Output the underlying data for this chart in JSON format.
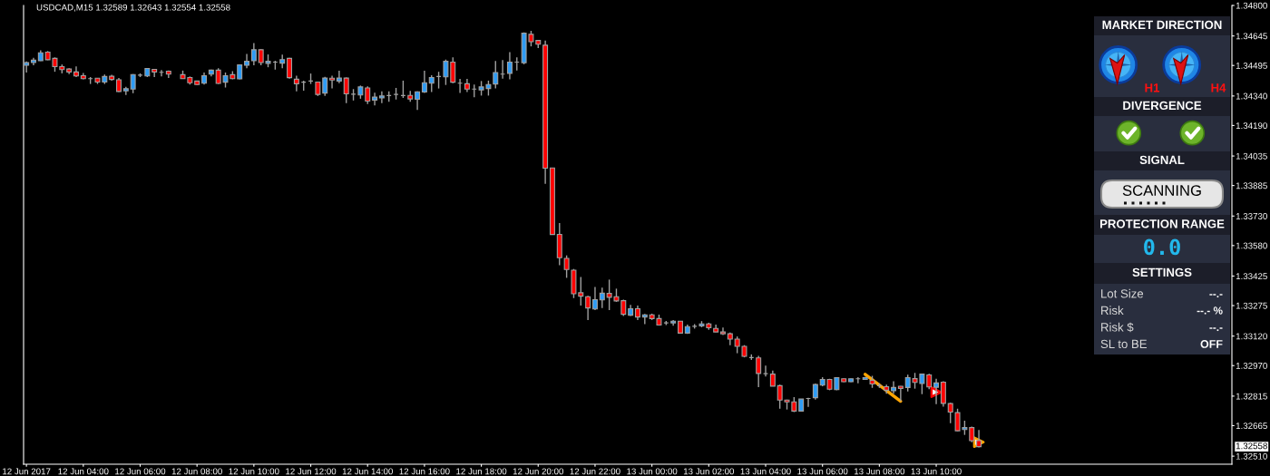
{
  "chart_data": [
    {
      "type": "candlestick",
      "title": "USDCAD,M15 1.32589 1.32643 1.32554 1.32558",
      "x": [
        "2017-06-12T02:00",
        "2017-06-12T02:15",
        "2017-06-12T02:30",
        "2017-06-12T02:45",
        "2017-06-12T03:00",
        "2017-06-12T03:15",
        "2017-06-12T03:30",
        "2017-06-12T03:45",
        "2017-06-12T04:00",
        "2017-06-12T04:15",
        "2017-06-12T04:30",
        "2017-06-12T04:45",
        "2017-06-12T05:00",
        "2017-06-12T05:15",
        "2017-06-12T05:30",
        "2017-06-12T05:45",
        "2017-06-12T06:00",
        "2017-06-12T06:15",
        "2017-06-12T06:30",
        "2017-06-12T06:45",
        "2017-06-12T07:00",
        "2017-06-12T07:30",
        "2017-06-12T07:45",
        "2017-06-12T08:00",
        "2017-06-12T08:15",
        "2017-06-12T08:30",
        "2017-06-12T08:45",
        "2017-06-12T09:00",
        "2017-06-12T09:15",
        "2017-06-12T09:30",
        "2017-06-12T09:45",
        "2017-06-12T10:00",
        "2017-06-12T10:15",
        "2017-06-12T10:30",
        "2017-06-12T10:45",
        "2017-06-12T11:00",
        "2017-06-12T11:15",
        "2017-06-12T11:30",
        "2017-06-12T11:45",
        "2017-06-12T12:00",
        "2017-06-12T12:15",
        "2017-06-12T12:30",
        "2017-06-12T12:45",
        "2017-06-12T13:00",
        "2017-06-12T13:15",
        "2017-06-12T13:30",
        "2017-06-12T13:45",
        "2017-06-12T14:00",
        "2017-06-12T14:15",
        "2017-06-12T14:30",
        "2017-06-12T14:45",
        "2017-06-12T15:00",
        "2017-06-12T15:15",
        "2017-06-12T15:30",
        "2017-06-12T15:45",
        "2017-06-12T16:00",
        "2017-06-12T16:15",
        "2017-06-12T16:30",
        "2017-06-12T16:45",
        "2017-06-12T17:00",
        "2017-06-12T17:15",
        "2017-06-12T17:30",
        "2017-06-12T17:45",
        "2017-06-12T18:00",
        "2017-06-12T18:15",
        "2017-06-12T18:30",
        "2017-06-12T18:45",
        "2017-06-12T19:00",
        "2017-06-12T19:15",
        "2017-06-12T19:30",
        "2017-06-12T19:45",
        "2017-06-12T20:00",
        "2017-06-12T20:15",
        "2017-06-12T20:30",
        "2017-06-12T20:45",
        "2017-06-12T21:00",
        "2017-06-12T21:15",
        "2017-06-12T21:30",
        "2017-06-12T21:45",
        "2017-06-12T22:00",
        "2017-06-12T22:15",
        "2017-06-12T22:30",
        "2017-06-12T22:45",
        "2017-06-12T23:00",
        "2017-06-12T23:15",
        "2017-06-12T23:30",
        "2017-06-12T23:45",
        "2017-06-13T00:00",
        "2017-06-13T00:15",
        "2017-06-13T00:30",
        "2017-06-13T00:45",
        "2017-06-13T01:00",
        "2017-06-13T01:15",
        "2017-06-13T01:30",
        "2017-06-13T01:45",
        "2017-06-13T02:00",
        "2017-06-13T02:15",
        "2017-06-13T02:30",
        "2017-06-13T02:45",
        "2017-06-13T03:00",
        "2017-06-13T03:15",
        "2017-06-13T03:30",
        "2017-06-13T03:45",
        "2017-06-13T04:00",
        "2017-06-13T04:15",
        "2017-06-13T04:30",
        "2017-06-13T04:45",
        "2017-06-13T05:00",
        "2017-06-13T05:15",
        "2017-06-13T05:30",
        "2017-06-13T05:45",
        "2017-06-13T06:00",
        "2017-06-13T06:15",
        "2017-06-13T06:30",
        "2017-06-13T06:45",
        "2017-06-13T07:00",
        "2017-06-13T07:15",
        "2017-06-13T07:30",
        "2017-06-13T07:45",
        "2017-06-13T08:00",
        "2017-06-13T08:15",
        "2017-06-13T08:30",
        "2017-06-13T08:45",
        "2017-06-13T09:00",
        "2017-06-13T09:15",
        "2017-06-13T09:30",
        "2017-06-13T09:45",
        "2017-06-13T10:00",
        "2017-06-13T10:15",
        "2017-06-13T10:30",
        "2017-06-13T10:45",
        "2017-06-13T11:00",
        "2017-06-13T11:15",
        "2017-06-13T11:30"
      ],
      "ohlc": [
        [
          1.34496,
          1.34515,
          1.34459,
          1.34509
        ],
        [
          1.3451,
          1.34534,
          1.34496,
          1.34522
        ],
        [
          1.34519,
          1.34572,
          1.34518,
          1.34559
        ],
        [
          1.34563,
          1.34568,
          1.34522,
          1.34524
        ],
        [
          1.34531,
          1.34536,
          1.34463,
          1.34489
        ],
        [
          1.34489,
          1.345,
          1.34455,
          1.34474
        ],
        [
          1.34477,
          1.34481,
          1.34451,
          1.34462
        ],
        [
          1.34462,
          1.3449,
          1.34436,
          1.34442
        ],
        [
          1.34443,
          1.34457,
          1.34424,
          1.34428
        ],
        [
          1.34428,
          1.34436,
          1.34401,
          1.34428
        ],
        [
          1.3443,
          1.34431,
          1.34401,
          1.34411
        ],
        [
          1.34411,
          1.34449,
          1.34401,
          1.34439
        ],
        [
          1.3444,
          1.34448,
          1.34418,
          1.34424
        ],
        [
          1.34422,
          1.34431,
          1.3436,
          1.34363
        ],
        [
          1.34366,
          1.34386,
          1.34345,
          1.34377
        ],
        [
          1.34375,
          1.34451,
          1.34354,
          1.34449
        ],
        [
          1.34446,
          1.34455,
          1.34436,
          1.34446
        ],
        [
          1.34442,
          1.34481,
          1.34436,
          1.3448
        ],
        [
          1.34475,
          1.34478,
          1.34436,
          1.34462
        ],
        [
          1.3446,
          1.34472,
          1.3444,
          1.3446
        ],
        [
          1.34466,
          1.34469,
          1.34431,
          1.34451
        ],
        [
          1.34448,
          1.34469,
          1.34427,
          1.34428
        ],
        [
          1.34434,
          1.34439,
          1.34398,
          1.34407
        ],
        [
          1.34416,
          1.34418,
          1.34396,
          1.34398
        ],
        [
          1.34405,
          1.34459,
          1.34398,
          1.34443
        ],
        [
          1.34451,
          1.34474,
          1.3444,
          1.34471
        ],
        [
          1.34471,
          1.34481,
          1.34401,
          1.34404
        ],
        [
          1.3441,
          1.34459,
          1.34383,
          1.34443
        ],
        [
          1.34448,
          1.34466,
          1.34425,
          1.34428
        ],
        [
          1.34427,
          1.345,
          1.34424,
          1.34498
        ],
        [
          1.34496,
          1.34554,
          1.34481,
          1.34516
        ],
        [
          1.34519,
          1.34609,
          1.34496,
          1.34575
        ],
        [
          1.34575,
          1.34578,
          1.34496,
          1.3451
        ],
        [
          1.34506,
          1.34551,
          1.34486,
          1.34516
        ],
        [
          1.34512,
          1.34519,
          1.34474,
          1.34512
        ],
        [
          1.34507,
          1.3455,
          1.34481,
          1.34525
        ],
        [
          1.34531,
          1.34534,
          1.34428,
          1.34433
        ],
        [
          1.34425,
          1.34443,
          1.34364,
          1.34402
        ],
        [
          1.3441,
          1.34418,
          1.34367,
          1.3441
        ],
        [
          1.34416,
          1.34454,
          1.34401,
          1.34416
        ],
        [
          1.34411,
          1.34413,
          1.3434,
          1.34348
        ],
        [
          1.34355,
          1.34437,
          1.3434,
          1.34431
        ],
        [
          1.3443,
          1.34443,
          1.34378,
          1.34421
        ],
        [
          1.34416,
          1.34468,
          1.34405,
          1.34431
        ],
        [
          1.34431,
          1.34434,
          1.34304,
          1.34351
        ],
        [
          1.34349,
          1.34375,
          1.34317,
          1.34349
        ],
        [
          1.34345,
          1.34393,
          1.34326,
          1.34386
        ],
        [
          1.34381,
          1.34389,
          1.34299,
          1.34314
        ],
        [
          1.34319,
          1.34357,
          1.34292,
          1.34334
        ],
        [
          1.3433,
          1.34363,
          1.34304,
          1.3434
        ],
        [
          1.34342,
          1.34363,
          1.3431,
          1.34342
        ],
        [
          1.34348,
          1.34381,
          1.34322,
          1.34348
        ],
        [
          1.34342,
          1.34418,
          1.3433,
          1.34342
        ],
        [
          1.34343,
          1.34366,
          1.3431,
          1.34325
        ],
        [
          1.34323,
          1.34363,
          1.34269,
          1.34361
        ],
        [
          1.3436,
          1.34468,
          1.34355,
          1.34407
        ],
        [
          1.34405,
          1.34445,
          1.3436,
          1.34434
        ],
        [
          1.34439,
          1.34463,
          1.34378,
          1.34439
        ],
        [
          1.34437,
          1.34525,
          1.34396,
          1.34516
        ],
        [
          1.34512,
          1.34536,
          1.34405,
          1.3441
        ],
        [
          1.34405,
          1.34427,
          1.34355,
          1.34405
        ],
        [
          1.34402,
          1.34427,
          1.3436,
          1.34375
        ],
        [
          1.34375,
          1.34398,
          1.34333,
          1.34375
        ],
        [
          1.34371,
          1.34416,
          1.34342,
          1.34386
        ],
        [
          1.34378,
          1.34418,
          1.34342,
          1.34398
        ],
        [
          1.34401,
          1.34518,
          1.34378,
          1.34459
        ],
        [
          1.34451,
          1.34522,
          1.34428,
          1.34451
        ],
        [
          1.34455,
          1.34563,
          1.34424,
          1.34512
        ],
        [
          1.34512,
          1.34536,
          1.34469,
          1.34512
        ],
        [
          1.34509,
          1.34663,
          1.34501,
          1.34659
        ],
        [
          1.34653,
          1.34671,
          1.34592,
          1.34616
        ],
        [
          1.34622,
          1.34625,
          1.34583,
          1.34603
        ],
        [
          1.34598,
          1.34622,
          1.33894,
          1.33973
        ],
        [
          1.33974,
          1.33974,
          1.33636,
          1.33636
        ],
        [
          1.33637,
          1.33694,
          1.3348,
          1.33518
        ],
        [
          1.33515,
          1.3353,
          1.33416,
          1.33458
        ],
        [
          1.33455,
          1.33461,
          1.33313,
          1.33335
        ],
        [
          1.3334,
          1.3342,
          1.33275,
          1.33323
        ],
        [
          1.3332,
          1.33325,
          1.33202,
          1.33263
        ],
        [
          1.33258,
          1.3337,
          1.33252,
          1.33305
        ],
        [
          1.33304,
          1.33366,
          1.33263,
          1.33338
        ],
        [
          1.33337,
          1.33407,
          1.33252,
          1.33317
        ],
        [
          1.3332,
          1.33361,
          1.33294,
          1.33299
        ],
        [
          1.333,
          1.33305,
          1.33222,
          1.33231
        ],
        [
          1.33226,
          1.33279,
          1.33222,
          1.33259
        ],
        [
          1.33259,
          1.33275,
          1.33202,
          1.33217
        ],
        [
          1.33217,
          1.33232,
          1.33181,
          1.33228
        ],
        [
          1.33228,
          1.33234,
          1.33202,
          1.33209
        ],
        [
          1.33209,
          1.33229,
          1.33176,
          1.33176
        ],
        [
          1.33187,
          1.33197,
          1.33176,
          1.33187
        ],
        [
          1.33187,
          1.33202,
          1.33173,
          1.33196
        ],
        [
          1.33196,
          1.33197,
          1.33134,
          1.33135
        ],
        [
          1.33135,
          1.33179,
          1.33131,
          1.33168
        ],
        [
          1.3317,
          1.33181,
          1.33158,
          1.3317
        ],
        [
          1.33172,
          1.33196,
          1.33165,
          1.33182
        ],
        [
          1.33182,
          1.33188,
          1.33152,
          1.33162
        ],
        [
          1.33159,
          1.33179,
          1.3314,
          1.33141
        ],
        [
          1.33141,
          1.33164,
          1.33126,
          1.33132
        ],
        [
          1.33132,
          1.33138,
          1.33074,
          1.33105
        ],
        [
          1.33105,
          1.33118,
          1.33033,
          1.33068
        ],
        [
          1.33068,
          1.33074,
          1.33012,
          1.33017
        ],
        [
          1.33011,
          1.33027,
          1.32999,
          1.33011
        ],
        [
          1.33009,
          1.3302,
          1.3286,
          1.3293
        ],
        [
          1.32929,
          1.3297,
          1.32915,
          1.32929
        ],
        [
          1.32927,
          1.32945,
          1.32866,
          1.32866
        ],
        [
          1.32868,
          1.32873,
          1.32751,
          1.32795
        ],
        [
          1.32795,
          1.32797,
          1.32747,
          1.32786
        ],
        [
          1.32786,
          1.3281,
          1.32734,
          1.32739
        ],
        [
          1.32739,
          1.32801,
          1.32739,
          1.328
        ],
        [
          1.32803,
          1.32806,
          1.3276,
          1.32803
        ],
        [
          1.32807,
          1.32879,
          1.32797,
          1.32874
        ],
        [
          1.32871,
          1.32911,
          1.32865,
          1.329
        ],
        [
          1.329,
          1.32903,
          1.32845,
          1.3285
        ],
        [
          1.32848,
          1.32911,
          1.32845,
          1.32909
        ],
        [
          1.32903,
          1.32904,
          1.32886,
          1.32888
        ],
        [
          1.32888,
          1.32904,
          1.32886,
          1.32903
        ],
        [
          1.32903,
          1.32911,
          1.3288,
          1.32903
        ],
        [
          1.329,
          1.32912,
          1.32897,
          1.32909
        ],
        [
          1.32895,
          1.32918,
          1.32857,
          1.32877
        ],
        [
          1.32868,
          1.3288,
          1.32857,
          1.32868
        ],
        [
          1.32863,
          1.32873,
          1.32827,
          1.32845
        ],
        [
          1.32842,
          1.32891,
          1.32827,
          1.32859
        ],
        [
          1.32865,
          1.32866,
          1.32789,
          1.32854
        ],
        [
          1.32859,
          1.32924,
          1.32839,
          1.32909
        ],
        [
          1.32904,
          1.32933,
          1.32853,
          1.32885
        ],
        [
          1.32879,
          1.32929,
          1.32825,
          1.32927
        ],
        [
          1.32923,
          1.32929,
          1.3285,
          1.32862
        ],
        [
          1.3286,
          1.32903,
          1.32774,
          1.32882
        ],
        [
          1.32886,
          1.32891,
          1.32762,
          1.32778
        ],
        [
          1.32777,
          1.32781,
          1.32678,
          1.32734
        ],
        [
          1.32731,
          1.32751,
          1.32637,
          1.32639
        ],
        [
          1.32645,
          1.3269,
          1.32618,
          1.32655
        ],
        [
          1.32655,
          1.3266,
          1.32581,
          1.32589
        ],
        [
          1.32589,
          1.32643,
          1.32554,
          1.32558
        ]
      ],
      "color": "#a0a0a0",
      "colors": [
        "#2e9cf5",
        "#2e9cf5",
        "#2e9cf5",
        "#ff0000",
        "#ff0000",
        "#ff0000",
        "#ff0000",
        "#ff0000",
        "#ff0000",
        "#a0a0a0",
        "#ff0000",
        "#2e9cf5",
        "#ff0000",
        "#ff0000",
        "#2e9cf5",
        "#2e9cf5",
        "#a0a0a0",
        "#2e9cf5",
        "#ff0000",
        "#a0a0a0",
        "#ff0000",
        "#ff0000",
        "#ff0000",
        "#ff0000",
        "#2e9cf5",
        "#2e9cf5",
        "#ff0000",
        "#2e9cf5",
        "#ff0000",
        "#2e9cf5",
        "#2e9cf5",
        "#2e9cf5",
        "#ff0000",
        "#2e9cf5",
        "#a0a0a0",
        "#2e9cf5",
        "#ff0000",
        "#ff0000",
        "#a0a0a0",
        "#a0a0a0",
        "#ff0000",
        "#2e9cf5",
        "#ff0000",
        "#2e9cf5",
        "#ff0000",
        "#a0a0a0",
        "#2e9cf5",
        "#ff0000",
        "#2e9cf5",
        "#2e9cf5",
        "#a0a0a0",
        "#a0a0a0",
        "#a0a0a0",
        "#ff0000",
        "#2e9cf5",
        "#2e9cf5",
        "#2e9cf5",
        "#a0a0a0",
        "#2e9cf5",
        "#ff0000",
        "#a0a0a0",
        "#ff0000",
        "#a0a0a0",
        "#2e9cf5",
        "#2e9cf5",
        "#2e9cf5",
        "#a0a0a0",
        "#2e9cf5",
        "#a0a0a0",
        "#2e9cf5",
        "#ff0000",
        "#ff0000",
        "#ff0000",
        "#ff0000",
        "#ff0000",
        "#ff0000",
        "#ff0000",
        "#ff0000",
        "#ff0000",
        "#2e9cf5",
        "#2e9cf5",
        "#ff0000",
        "#ff0000",
        "#ff0000",
        "#2e9cf5",
        "#ff0000",
        "#2e9cf5",
        "#ff0000",
        "#ff0000",
        "#a0a0a0",
        "#2e9cf5",
        "#ff0000",
        "#2e9cf5",
        "#a0a0a0",
        "#2e9cf5",
        "#ff0000",
        "#ff0000",
        "#ff0000",
        "#ff0000",
        "#ff0000",
        "#ff0000",
        "#a0a0a0",
        "#ff0000",
        "#a0a0a0",
        "#ff0000",
        "#ff0000",
        "#ff0000",
        "#ff0000",
        "#2e9cf5",
        "#a0a0a0",
        "#2e9cf5",
        "#2e9cf5",
        "#ff0000",
        "#2e9cf5",
        "#ff0000",
        "#2e9cf5",
        "#a0a0a0",
        "#2e9cf5",
        "#ff0000",
        "#a0a0a0",
        "#ff0000",
        "#2e9cf5",
        "#ff0000",
        "#2e9cf5",
        "#ff0000",
        "#2e9cf5",
        "#ff0000",
        "#2e9cf5",
        "#ff0000",
        "#ff0000",
        "#ff0000",
        "#2e9cf5",
        "#ff0000",
        "#ff0000"
      ],
      "series": [
        {
          "type": "line",
          "x": [
            "2017-06-13T07:30",
            "2017-06-13T08:45"
          ],
          "values": [
            1.32926,
            1.32789
          ],
          "color": "#ffa500",
          "line_style": "solid"
        },
        {
          "type": "scatter",
          "x": [
            "2017-06-13T10:00"
          ],
          "values": [
            1.32835
          ],
          "color": "#ff0000",
          "marker": "triangle"
        },
        {
          "type": "scatter",
          "x": [
            "2017-06-13T11:30"
          ],
          "values": [
            1.32581
          ],
          "color": "#ffa500",
          "marker": "triangle"
        }
      ],
      "xlim": [
        "2017-06-12T01:54",
        "2017-06-13T20:24"
      ],
      "xticks": [
        {
          "value": "2017-06-12T02:00",
          "label": "12 Jun 2017"
        },
        {
          "value": "2017-06-12T04:00",
          "label": "12 Jun 04:00"
        },
        {
          "value": "2017-06-12T06:00",
          "label": "12 Jun 06:00"
        },
        {
          "value": "2017-06-12T08:00",
          "label": "12 Jun 08:00"
        },
        {
          "value": "2017-06-12T10:00",
          "label": "12 Jun 10:00"
        },
        {
          "value": "2017-06-12T12:00",
          "label": "12 Jun 12:00"
        },
        {
          "value": "2017-06-12T14:00",
          "label": "12 Jun 14:00"
        },
        {
          "value": "2017-06-12T16:00",
          "label": "12 Jun 16:00"
        },
        {
          "value": "2017-06-12T18:00",
          "label": "12 Jun 18:00"
        },
        {
          "value": "2017-06-12T20:00",
          "label": "12 Jun 20:00"
        },
        {
          "value": "2017-06-12T22:00",
          "label": "12 Jun 22:00"
        },
        {
          "value": "2017-06-13T00:00",
          "label": "13 Jun 00:00"
        },
        {
          "value": "2017-06-13T02:00",
          "label": "13 Jun 02:00"
        },
        {
          "value": "2017-06-13T04:00",
          "label": "13 Jun 04:00"
        },
        {
          "value": "2017-06-13T06:00",
          "label": "13 Jun 06:00"
        },
        {
          "value": "2017-06-13T08:00",
          "label": "13 Jun 08:00"
        },
        {
          "value": "2017-06-13T10:00",
          "label": "13 Jun 10:00"
        }
      ],
      "ylim": [
        1.32469,
        1.348
      ],
      "yticks": [
        {
          "value": 1.348,
          "label": "1.34800"
        },
        1.34645,
        1.34495,
        {
          "value": 1.3434,
          "label": "1.34340"
        },
        {
          "value": 1.3419,
          "label": "1.34190"
        },
        1.34035,
        1.33885,
        {
          "value": 1.3373,
          "label": "1.33730"
        },
        {
          "value": 1.3358,
          "label": "1.33580"
        },
        1.33425,
        1.33275,
        {
          "value": 1.3312,
          "label": "1.33120"
        },
        {
          "value": 1.3297,
          "label": "1.32970"
        },
        1.32815,
        1.32665,
        {
          "value": 1.3251,
          "label": "1.32510"
        }
      ],
      "annotations": [
        "1.32558"
      ]
    },
    {
      "type": "other",
      "annotations": [
        "MARKET DIRECTION",
        "H1",
        "H4",
        "DIVERGENCE",
        "SIGNAL",
        "SCANNING",
        "PROTECTION RANGE",
        "0.0",
        "SETTINGS",
        "Lot Size",
        "--.-",
        "Risk",
        "--.- %",
        "Risk $",
        "--.-",
        "SL to BE",
        "OFF"
      ]
    }
  ]
}
